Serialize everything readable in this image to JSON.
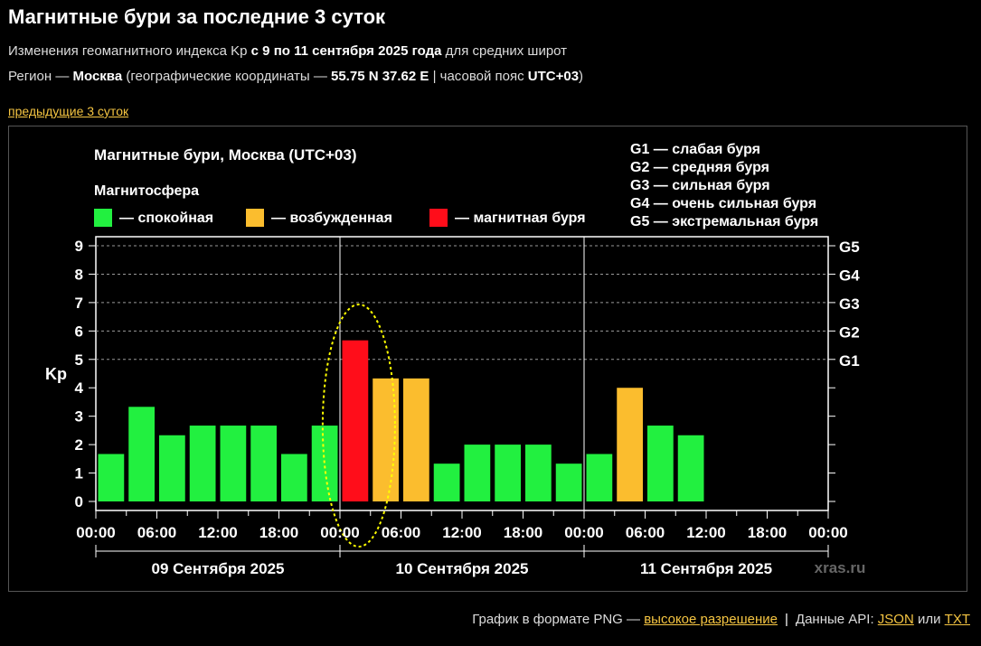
{
  "header": {
    "title": "Магнитные бури за последние 3 суток",
    "line1": {
      "prefix": "Изменения геомагнитного индекса Kp ",
      "bold": "с 9 по 11 сентября 2025 года",
      "suffix": " для средних широт"
    },
    "line2": {
      "prefix": "Регион — ",
      "city": "Москва",
      "mid": " (географические координаты — ",
      "coords": "55.75 N 37.62 E",
      "tz_prefix": " | часовой пояс ",
      "tz": "UTC+03",
      "end": ")"
    },
    "prev_link": "предыдущие 3 суток"
  },
  "chart_data": {
    "type": "bar",
    "title": "Магнитные бури, Москва (UTC+03)",
    "legend_title": "Магнитосфера",
    "legend": [
      {
        "label": "— спокойная",
        "color": "#22f040"
      },
      {
        "label": "— возбужденная",
        "color": "#fbbd2e"
      },
      {
        "label": "— магнитная буря",
        "color": "#ff0d1a"
      }
    ],
    "g_legend": [
      "G1 — слабая буря",
      "G2 — средняя буря",
      "G3 — сильная буря",
      "G4 — очень сильная буря",
      "G5 — экстремальная буря"
    ],
    "ylabel": "Kp",
    "ylim": [
      0,
      9
    ],
    "yticks": [
      "0",
      "1",
      "2",
      "3",
      "4",
      "5",
      "6",
      "7",
      "8",
      "9"
    ],
    "right_ticks": [
      {
        "kp": 5,
        "label": "G1"
      },
      {
        "kp": 6,
        "label": "G2"
      },
      {
        "kp": 7,
        "label": "G3"
      },
      {
        "kp": 8,
        "label": "G4"
      },
      {
        "kp": 9,
        "label": "G5"
      }
    ],
    "xtick_labels": [
      "00:00",
      "06:00",
      "12:00",
      "18:00",
      "00:00",
      "06:00",
      "12:00",
      "18:00",
      "00:00",
      "06:00",
      "12:00",
      "18:00",
      "00:00"
    ],
    "days": [
      "09 Сентября 2025",
      "10 Сентября 2025",
      "11 Сентября 2025"
    ],
    "values": [
      1.67,
      3.33,
      2.33,
      2.67,
      2.67,
      2.67,
      1.67,
      2.67,
      5.67,
      4.33,
      4.33,
      1.33,
      2.0,
      2.0,
      2.0,
      1.33,
      1.67,
      4.0,
      2.67,
      2.33
    ],
    "levels": [
      "quiet",
      "quiet",
      "quiet",
      "quiet",
      "quiet",
      "quiet",
      "quiet",
      "quiet",
      "storm",
      "active",
      "active",
      "quiet",
      "quiet",
      "quiet",
      "quiet",
      "quiet",
      "quiet",
      "active",
      "quiet",
      "quiet"
    ],
    "level_colors": {
      "quiet": "#22f040",
      "active": "#fbbd2e",
      "storm": "#ff0d1a"
    },
    "highlight_index": 8,
    "watermark": "xras.ru"
  },
  "footer": {
    "text": "График в формате PNG — ",
    "hires": "высокое разрешение",
    "api": "Данные API: ",
    "json": "JSON",
    "or": " или ",
    "txt": "TXT"
  }
}
